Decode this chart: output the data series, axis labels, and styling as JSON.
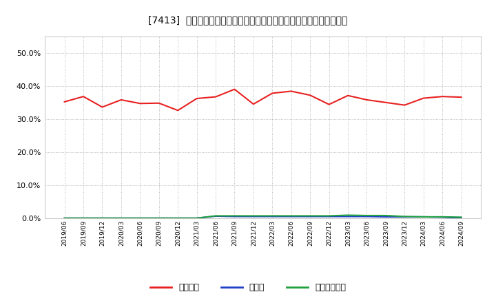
{
  "title": "[7413]  自己資本、のれん、繰延税金資産の総資産に対する比率の推移",
  "x_labels": [
    "2019/06",
    "2019/09",
    "2019/12",
    "2020/03",
    "2020/06",
    "2020/09",
    "2020/12",
    "2021/03",
    "2021/06",
    "2021/09",
    "2021/12",
    "2022/03",
    "2022/06",
    "2022/09",
    "2022/12",
    "2023/03",
    "2023/06",
    "2023/09",
    "2023/12",
    "2024/03",
    "2024/06",
    "2024/09"
  ],
  "jikoshihon": [
    0.352,
    0.368,
    0.336,
    0.358,
    0.347,
    0.348,
    0.326,
    0.362,
    0.367,
    0.39,
    0.345,
    0.378,
    0.384,
    0.372,
    0.344,
    0.371,
    0.358,
    0.35,
    0.342,
    0.363,
    0.368,
    0.366
  ],
  "noren": [
    0.0,
    0.0,
    0.0,
    0.0,
    0.0,
    0.0,
    0.0,
    0.0,
    0.006,
    0.005,
    0.005,
    0.005,
    0.005,
    0.005,
    0.005,
    0.005,
    0.005,
    0.004,
    0.004,
    0.004,
    0.003,
    0.0
  ],
  "kurinobe": [
    0.0,
    0.0,
    0.0,
    0.0,
    0.0,
    0.0,
    0.0,
    0.0,
    0.007,
    0.007,
    0.007,
    0.007,
    0.007,
    0.007,
    0.007,
    0.009,
    0.008,
    0.008,
    0.005,
    0.004,
    0.004,
    0.003
  ],
  "jikoshihon_color": "#e82020",
  "noren_color": "#2040c8",
  "kurinobe_color": "#20a040",
  "bg_color": "#ffffff",
  "plot_bg_color": "#ffffff",
  "grid_color": "#aaaaaa",
  "ylim": [
    0.0,
    0.55
  ],
  "yticks": [
    0.0,
    0.1,
    0.2,
    0.3,
    0.4,
    0.5
  ],
  "legend_labels": [
    "自己資本",
    "のれん",
    "繰延税金資産"
  ]
}
